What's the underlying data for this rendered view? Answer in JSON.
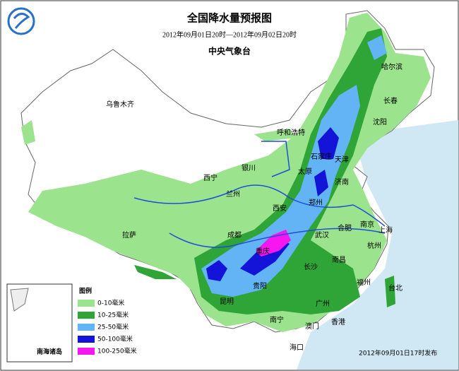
{
  "header": {
    "title": "全国降水量预报图",
    "period": "2012年09月01日20时—2012年09月02日20时",
    "issuer": "中央气象台"
  },
  "cities": [
    "乌鲁木齐",
    "哈尔滨",
    "长春",
    "沈阳",
    "呼和浩特",
    "石家庄",
    "天津",
    "银川",
    "太原",
    "西宁",
    "兰州",
    "济南",
    "郑州",
    "西安",
    "南京",
    "合肥",
    "上海",
    "拉萨",
    "成都",
    "武汉",
    "杭州",
    "重庆",
    "南昌",
    "长沙",
    "贵阳",
    "福州",
    "台北",
    "昆明",
    "广州",
    "南宁",
    "澳门",
    "香港",
    "海口"
  ],
  "legend": {
    "title": "图例",
    "items": [
      {
        "label": "0-10毫米",
        "color": "#9be38d"
      },
      {
        "label": "10-25毫米",
        "color": "#2fa437"
      },
      {
        "label": "25-50毫米",
        "color": "#63b4f5"
      },
      {
        "label": "50-100毫米",
        "color": "#1414d8"
      },
      {
        "label": "100-250毫米",
        "color": "#f516f0"
      }
    ]
  },
  "inset_label": "南海诸岛",
  "footer": "2012年09月01日17时发布"
}
